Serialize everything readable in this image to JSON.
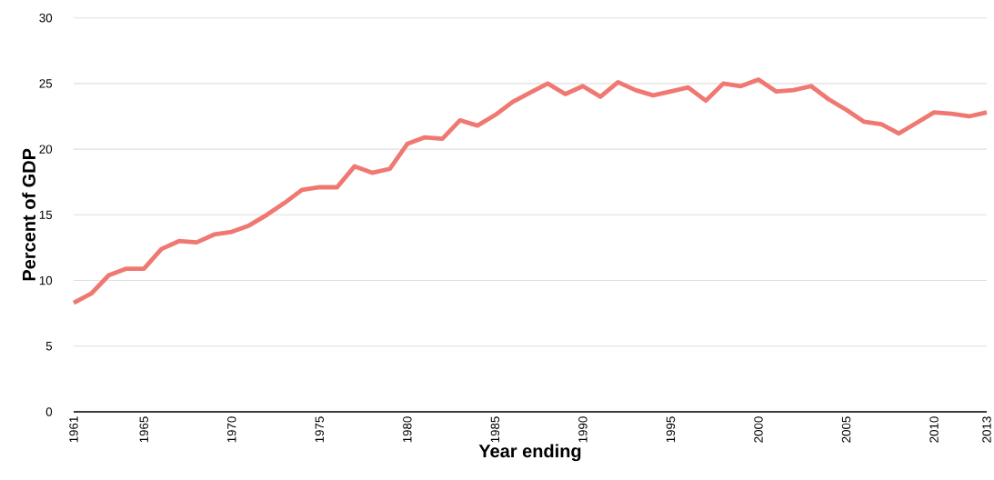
{
  "chart_data": {
    "type": "line",
    "xlabel": "Year ending",
    "ylabel": "Percent of GDP",
    "x": [
      1961,
      1962,
      1963,
      1964,
      1965,
      1966,
      1967,
      1968,
      1969,
      1970,
      1971,
      1972,
      1973,
      1974,
      1975,
      1976,
      1977,
      1978,
      1979,
      1980,
      1981,
      1982,
      1983,
      1984,
      1985,
      1986,
      1987,
      1988,
      1989,
      1990,
      1991,
      1992,
      1993,
      1994,
      1995,
      1996,
      1997,
      1998,
      1999,
      2000,
      2001,
      2002,
      2003,
      2004,
      2005,
      2006,
      2007,
      2008,
      2009,
      2010,
      2011,
      2012,
      2013
    ],
    "series": [
      {
        "color": "#f07872",
        "values": [
          8.3,
          9.0,
          10.4,
          10.9,
          10.9,
          12.4,
          13.0,
          12.9,
          13.5,
          13.7,
          14.2,
          15.0,
          15.9,
          16.9,
          17.1,
          17.1,
          18.7,
          18.2,
          18.5,
          20.4,
          20.9,
          20.8,
          22.2,
          21.8,
          22.6,
          23.6,
          24.3,
          25.0,
          24.2,
          24.8,
          24.0,
          25.1,
          24.5,
          24.1,
          24.4,
          24.7,
          23.7,
          25.0,
          24.8,
          25.3,
          24.4,
          24.5,
          24.8,
          23.8,
          23.0,
          22.1,
          21.9,
          21.2,
          22.0,
          22.8,
          22.7,
          22.5,
          22.8
        ]
      }
    ],
    "xlim": [
      1961,
      2013
    ],
    "ylim": [
      0,
      30
    ],
    "xticks": [
      1961,
      1965,
      1970,
      1975,
      1980,
      1985,
      1990,
      1995,
      2000,
      2005,
      2010,
      2013
    ],
    "yticks": [
      0,
      5,
      10,
      15,
      20,
      25,
      30
    ],
    "grid": "y",
    "marker": "none",
    "line_style": "solid"
  }
}
